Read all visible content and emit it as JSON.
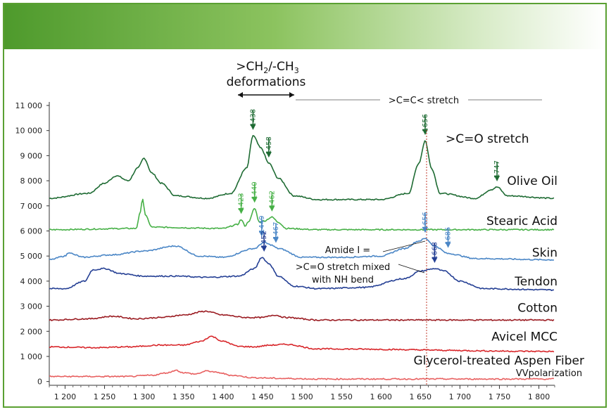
{
  "colors": {
    "olive_oil": "#1e6b33",
    "stearic_acid": "#46b046",
    "skin": "#4a86c6",
    "tendon": "#243f94",
    "cotton": "#9b1c22",
    "avicel": "#d8262a",
    "aspen": "#e86060",
    "banner_start": "#4e9a2c",
    "frame": "#5aa032"
  },
  "chart_data": {
    "type": "line",
    "title": "",
    "xlabel": "",
    "ylabel": "",
    "xlim": [
      1180,
      1820
    ],
    "ylim": [
      -150,
      11000
    ],
    "x_ticks": [
      1200,
      1250,
      1300,
      1350,
      1400,
      1450,
      1500,
      1550,
      1600,
      1650,
      1700,
      1750,
      1800
    ],
    "x_tick_labels": [
      "1 200",
      "1 250",
      "1 300",
      "1 350",
      "1 400",
      "1 450",
      "1 500",
      "1 550",
      "1 600",
      "1 650",
      "1 700",
      "1 750",
      "1 800"
    ],
    "y_ticks": [
      0,
      1000,
      2000,
      3000,
      4000,
      5000,
      6000,
      7000,
      8000,
      9000,
      10000,
      11000
    ],
    "y_tick_labels": [
      "0",
      "1 000",
      "2 000",
      "3 000",
      "4 000",
      "5 000",
      "6 000",
      "7 000",
      "8 000",
      "9 000",
      "10 000",
      "11 000"
    ],
    "series": [
      {
        "name": "Olive Oil",
        "color_key": "olive_oil",
        "label": "Olive Oil",
        "x": [
          1180,
          1230,
          1250,
          1265,
          1280,
          1292,
          1300,
          1310,
          1322,
          1340,
          1380,
          1410,
          1430,
          1438,
          1448,
          1458,
          1470,
          1490,
          1520,
          1600,
          1635,
          1648,
          1656,
          1664,
          1675,
          1720,
          1740,
          1747,
          1760,
          1820
        ],
        "y": [
          7300,
          7500,
          7900,
          8200,
          8000,
          8500,
          8900,
          8300,
          7900,
          7400,
          7300,
          7500,
          8500,
          9800,
          9300,
          8700,
          8100,
          7400,
          7250,
          7250,
          7500,
          8700,
          9600,
          8500,
          7500,
          7300,
          7650,
          7750,
          7400,
          7300
        ]
      },
      {
        "name": "Stearic Acid",
        "color_key": "stearic_acid",
        "label": "Stearic Acid",
        "x": [
          1180,
          1290,
          1295,
          1298,
          1302,
          1310,
          1400,
          1418,
          1423,
          1428,
          1433,
          1440,
          1446,
          1452,
          1462,
          1470,
          1480,
          1520,
          1820
        ],
        "y": [
          6050,
          6100,
          6700,
          7300,
          6600,
          6150,
          6100,
          6250,
          6450,
          6200,
          6400,
          6900,
          6350,
          6400,
          6550,
          6350,
          6100,
          6050,
          6050
        ]
      },
      {
        "name": "Skin",
        "color_key": "skin",
        "label": "Skin",
        "x": [
          1180,
          1200,
          1205,
          1212,
          1222,
          1260,
          1300,
          1340,
          1370,
          1400,
          1440,
          1452,
          1460,
          1470,
          1500,
          1550,
          1600,
          1630,
          1648,
          1656,
          1668,
          1685,
          1720,
          1820
        ],
        "y": [
          4850,
          5000,
          5150,
          5050,
          4950,
          5050,
          5200,
          5400,
          5000,
          4950,
          5300,
          5550,
          5450,
          5300,
          4950,
          4950,
          5000,
          5300,
          5600,
          5700,
          5400,
          5100,
          4900,
          4850
        ]
      },
      {
        "name": "Tendon",
        "color_key": "tendon",
        "label": "Tendon",
        "x": [
          1180,
          1200,
          1225,
          1235,
          1250,
          1270,
          1300,
          1340,
          1380,
          1420,
          1440,
          1449,
          1458,
          1470,
          1490,
          1520,
          1580,
          1630,
          1650,
          1668,
          1680,
          1700,
          1730,
          1820
        ],
        "y": [
          3700,
          3700,
          4000,
          4450,
          4500,
          4300,
          4200,
          4200,
          4150,
          4200,
          4500,
          4950,
          4700,
          4200,
          3800,
          3700,
          3750,
          4100,
          4400,
          4500,
          4400,
          4000,
          3700,
          3650
        ]
      },
      {
        "name": "Cotton",
        "color_key": "cotton",
        "label": "Cotton",
        "x": [
          1180,
          1230,
          1260,
          1290,
          1320,
          1350,
          1378,
          1400,
          1430,
          1450,
          1465,
          1480,
          1520,
          1820
        ],
        "y": [
          2450,
          2500,
          2600,
          2500,
          2550,
          2650,
          2800,
          2650,
          2550,
          2550,
          2650,
          2550,
          2450,
          2450
        ]
      },
      {
        "name": "Avicel MCC",
        "color_key": "avicel",
        "label": "Avicel MCC",
        "x": [
          1180,
          1240,
          1280,
          1320,
          1350,
          1372,
          1385,
          1400,
          1420,
          1440,
          1460,
          1480,
          1520,
          1820
        ],
        "y": [
          1380,
          1350,
          1380,
          1450,
          1450,
          1600,
          1800,
          1600,
          1400,
          1380,
          1450,
          1480,
          1300,
          1200
        ]
      },
      {
        "name": "Glycerol-treated Aspen Fiber VV polarization",
        "color_key": "aspen",
        "label": "Glycerol-treated Aspen Fiber",
        "x": [
          1180,
          1280,
          1310,
          1330,
          1340,
          1350,
          1365,
          1380,
          1395,
          1410,
          1440,
          1480,
          1520,
          1820
        ],
        "y": [
          200,
          200,
          250,
          350,
          450,
          350,
          300,
          420,
          350,
          250,
          150,
          120,
          100,
          100
        ]
      }
    ],
    "peak_labels": [
      {
        "x": 1438,
        "y": 9800,
        "text": "1438",
        "color_key": "olive_oil"
      },
      {
        "x": 1458,
        "y": 8700,
        "text": "1458",
        "color_key": "olive_oil"
      },
      {
        "x": 1656,
        "y": 9600,
        "text": "1656",
        "color_key": "olive_oil"
      },
      {
        "x": 1747,
        "y": 7750,
        "text": "1747",
        "color_key": "olive_oil"
      },
      {
        "x": 1423,
        "y": 6450,
        "text": "1423",
        "color_key": "stearic_acid"
      },
      {
        "x": 1440,
        "y": 6900,
        "text": "1440",
        "color_key": "stearic_acid"
      },
      {
        "x": 1462,
        "y": 6550,
        "text": "1462",
        "color_key": "stearic_acid"
      },
      {
        "x": 1449,
        "y": 5550,
        "text": "1449",
        "color_key": "skin"
      },
      {
        "x": 1467,
        "y": 5300,
        "text": "1467",
        "color_key": "skin"
      },
      {
        "x": 1656,
        "y": 5700,
        "text": "1656",
        "color_key": "skin"
      },
      {
        "x": 1685,
        "y": 5100,
        "text": "1685",
        "color_key": "skin"
      },
      {
        "x": 1452,
        "y": 4950,
        "text": "1452",
        "color_key": "tendon"
      },
      {
        "x": 1668,
        "y": 4500,
        "text": "1668",
        "color_key": "tendon"
      }
    ],
    "annotations": {
      "ch_deform_line1": ">CH",
      "ch_deform_sub1": "2",
      "ch_deform_mid": "/-CH",
      "ch_deform_sub2": "3",
      "ch_deform_line2": "deformations",
      "cc_stretch": ">C=C< stretch",
      "co_stretch": ">C=O stretch",
      "amide_line1": "Amide I =",
      "amide_line2": ">C=O stretch mixed",
      "amide_line3": "with NH bend",
      "aspen_line2": "VVpolarization"
    }
  }
}
